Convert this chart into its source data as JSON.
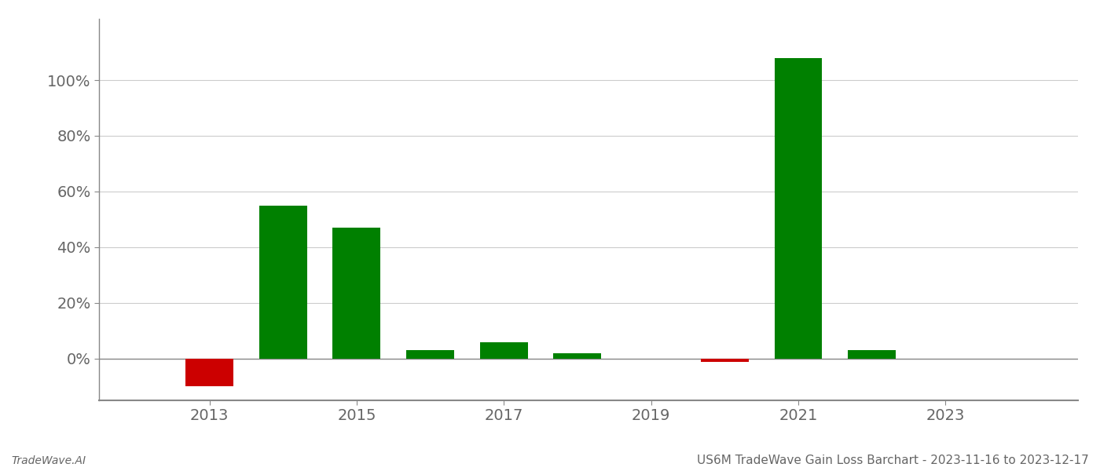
{
  "years": [
    2013,
    2014,
    2015,
    2016,
    2017,
    2018,
    2019,
    2020,
    2021,
    2022,
    2023
  ],
  "values": [
    -0.1,
    0.55,
    0.47,
    0.03,
    0.06,
    0.02,
    0.0,
    -0.012,
    1.08,
    0.03,
    0.0
  ],
  "bar_colors": [
    "#cc0000",
    "#008000",
    "#008000",
    "#008000",
    "#008000",
    "#008000",
    "#008000",
    "#cc0000",
    "#008000",
    "#008000",
    "#008000"
  ],
  "title": "US6M TradeWave Gain Loss Barchart - 2023-11-16 to 2023-12-17",
  "footer_left": "TradeWave.AI",
  "background_color": "#ffffff",
  "ytick_values": [
    0.0,
    0.2,
    0.4,
    0.6,
    0.8,
    1.0
  ],
  "ylim": [
    -0.15,
    1.22
  ],
  "xlim": [
    2011.5,
    2024.8
  ],
  "xtick_values": [
    2013,
    2015,
    2017,
    2019,
    2021,
    2023
  ],
  "bar_width": 0.65,
  "grid_color": "#cccccc",
  "axis_color": "#888888",
  "text_color": "#666666",
  "title_fontsize": 11,
  "footer_fontsize": 10,
  "tick_fontsize": 14
}
